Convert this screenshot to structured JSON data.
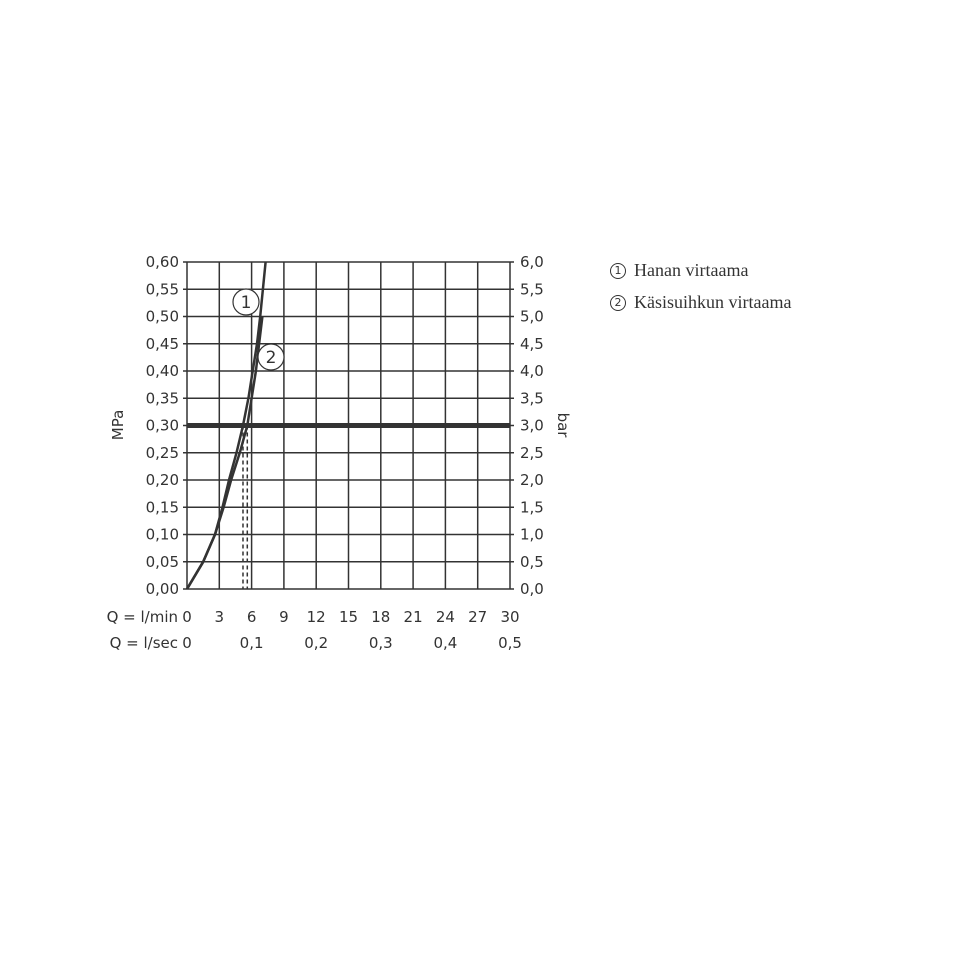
{
  "chart_data": {
    "type": "line",
    "ylabel_left": "MPa",
    "ylabel_right": "bar",
    "xlabel_rows": [
      "Q = l/min",
      "Q = l/sec"
    ],
    "x_ticks_lmin": [
      "0",
      "3",
      "6",
      "9",
      "12",
      "15",
      "18",
      "21",
      "24",
      "27",
      "30"
    ],
    "x_ticks_lsec": [
      "0",
      "0,1",
      "0,2",
      "0,3",
      "0,4",
      "0,5"
    ],
    "y_ticks_left": [
      "0,00",
      "0,05",
      "0,10",
      "0,15",
      "0,20",
      "0,25",
      "0,30",
      "0,35",
      "0,40",
      "0,45",
      "0,50",
      "0,55",
      "0,60"
    ],
    "y_ticks_right": [
      "0,0",
      "0,5",
      "1,0",
      "1,5",
      "2,0",
      "2,5",
      "3,0",
      "3,5",
      "4,0",
      "4,5",
      "5,0",
      "5,5",
      "6,0"
    ],
    "xlim": [
      0,
      30
    ],
    "ylim": [
      0,
      0.6
    ],
    "grid": true,
    "reference_line_y": 0.3,
    "series": [
      {
        "name": "Hanan virtaama",
        "label": "1",
        "points": [
          [
            0,
            0
          ],
          [
            1.5,
            0.05
          ],
          [
            2.6,
            0.1
          ],
          [
            3.3,
            0.15
          ],
          [
            3.9,
            0.2
          ],
          [
            4.6,
            0.25
          ],
          [
            5.2,
            0.3
          ],
          [
            5.7,
            0.35
          ],
          [
            6.1,
            0.4
          ],
          [
            6.5,
            0.45
          ],
          [
            6.8,
            0.5
          ],
          [
            7.05,
            0.55
          ],
          [
            7.3,
            0.6
          ]
        ],
        "drop_x": 5.2
      },
      {
        "name": "Käsisuihkun virtaama",
        "label": "2",
        "points": [
          [
            0,
            0
          ],
          [
            1.5,
            0.05
          ],
          [
            2.6,
            0.1
          ],
          [
            3.4,
            0.15
          ],
          [
            4.1,
            0.2
          ],
          [
            4.9,
            0.25
          ],
          [
            5.6,
            0.3
          ],
          [
            6.0,
            0.35
          ],
          [
            6.4,
            0.4
          ],
          [
            6.7,
            0.45
          ],
          [
            7.0,
            0.5
          ]
        ],
        "drop_x": 5.6
      }
    ],
    "legend_placement": "right"
  },
  "legend": [
    {
      "num": "1",
      "text": "Hanan virtaama"
    },
    {
      "num": "2",
      "text": "Käsisuihkun virtaama"
    }
  ]
}
